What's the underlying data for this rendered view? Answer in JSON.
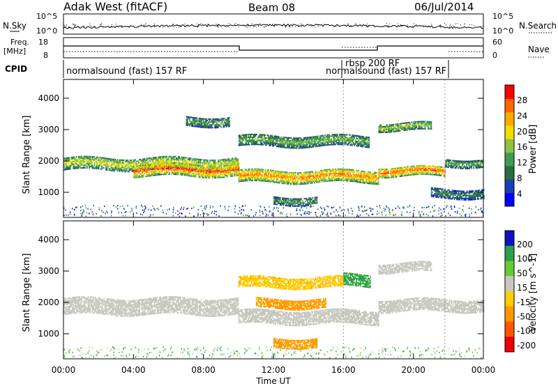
{
  "header": {
    "radar": "Adak West (fitACF)",
    "beam": "Beam 08",
    "date": "06/Jul/2014"
  },
  "nsky_panel": {
    "left_label": "N.Sky",
    "right_label": "N.Search",
    "ticks_left": [
      "10^5",
      "10^0"
    ],
    "ticks_right": [
      "10^5",
      "10^0"
    ]
  },
  "freq_panel": {
    "left_label_top": "Freq.",
    "left_label_unit": "[MHz]",
    "right_label": "Nave",
    "ticks_left": [
      "18",
      "8"
    ],
    "ticks_right": [
      "60",
      "0"
    ]
  },
  "cpid_panel": {
    "label": "CPID",
    "modes": [
      "normalsound (fast) 157 RF",
      "rbsp 200 RF",
      "normalsound (fast) 157 RF"
    ]
  },
  "power_panel": {
    "ylabel": "Slant Range [km]",
    "yticks": [
      "4000",
      "3000",
      "2000",
      "1000"
    ],
    "colorbar_label": "Power [dB]",
    "colorbar_ticks": [
      "28",
      "24",
      "20",
      "16",
      "12",
      "8",
      "4"
    ],
    "colors": [
      "#0000ff",
      "#1a3fb0",
      "#2d6b3c",
      "#3f9a55",
      "#8fc040",
      "#f0e000",
      "#ffaa00",
      "#ff6600",
      "#ff0000"
    ]
  },
  "velocity_panel": {
    "ylabel": "Slant Range [km]",
    "yticks": [
      "4000",
      "3000",
      "2000",
      "1000"
    ],
    "colorbar_label": "Velocity [m s^-1]",
    "colorbar_ticks": [
      "200",
      "100",
      "50",
      "15",
      "-15",
      "-50",
      "-100",
      "-200"
    ],
    "colors": [
      "#1010c0",
      "#2aa04a",
      "#66cc33",
      "#c8c8c0",
      "#ffcc00",
      "#ff9900",
      "#ff5500",
      "#ee0000"
    ]
  },
  "xaxis": {
    "ticks": [
      "00:00",
      "04:00",
      "08:00",
      "12:00",
      "16:00",
      "20:00",
      "00:00"
    ],
    "label": "Time UT"
  },
  "chart_data": {
    "type": "heatmap",
    "x_unit": "hours UT",
    "xlim": [
      0,
      24
    ],
    "ylim": [
      200,
      4600
    ],
    "mode_boundaries_hours": [
      16.0,
      21.8
    ],
    "power_bands": [
      {
        "t0": 0,
        "t1": 10,
        "r0": 1700,
        "r1": 2100,
        "power_db": 18
      },
      {
        "t0": 4,
        "t1": 10,
        "r0": 1500,
        "r1": 1900,
        "power_db": 26
      },
      {
        "t0": 7,
        "t1": 9.5,
        "r0": 3100,
        "r1": 3400,
        "power_db": 12
      },
      {
        "t0": 10,
        "t1": 18,
        "r0": 1300,
        "r1": 1700,
        "power_db": 24
      },
      {
        "t0": 10,
        "t1": 17.5,
        "r0": 2450,
        "r1": 2800,
        "power_db": 14
      },
      {
        "t0": 12,
        "t1": 14.5,
        "r0": 600,
        "r1": 850,
        "power_db": 12
      },
      {
        "t0": 18,
        "t1": 21.8,
        "r0": 1500,
        "r1": 1800,
        "power_db": 26
      },
      {
        "t0": 18,
        "t1": 21,
        "r0": 2950,
        "r1": 3200,
        "power_db": 16
      },
      {
        "t0": 21.8,
        "t1": 24,
        "r0": 1800,
        "r1": 2050,
        "power_db": 14
      },
      {
        "t0": 21,
        "t1": 24,
        "r0": 800,
        "r1": 1100,
        "power_db": 10
      }
    ],
    "velocity_bands": [
      {
        "t0": 0,
        "t1": 10,
        "r0": 1600,
        "r1": 2100,
        "velocity": 0
      },
      {
        "t0": 10,
        "t1": 18,
        "r0": 1300,
        "r1": 1750,
        "velocity": 0
      },
      {
        "t0": 10,
        "t1": 16,
        "r0": 2450,
        "r1": 2800,
        "velocity": -40
      },
      {
        "t0": 16,
        "t1": 17.5,
        "r0": 2500,
        "r1": 2900,
        "velocity": 60
      },
      {
        "t0": 11,
        "t1": 15,
        "r0": 1800,
        "r1": 2100,
        "velocity": -60
      },
      {
        "t0": 12,
        "t1": 14.5,
        "r0": 550,
        "r1": 850,
        "velocity": -60
      },
      {
        "t0": 18,
        "t1": 24,
        "r0": 1700,
        "r1": 2100,
        "velocity": 0
      },
      {
        "t0": 18,
        "t1": 21,
        "r0": 2950,
        "r1": 3250,
        "velocity": 0
      }
    ]
  }
}
